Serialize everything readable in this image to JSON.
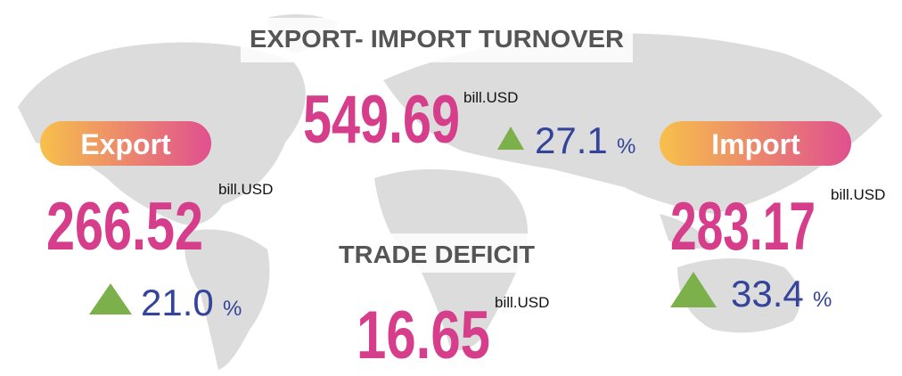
{
  "turnover": {
    "title": "EXPORT- IMPORT TURNOVER",
    "value": "549.69",
    "unit": "bill.USD",
    "change": "27.1",
    "change_unit": "%"
  },
  "export": {
    "label": "Export",
    "value": "266.52",
    "unit": "bill.USD",
    "change": "21.0",
    "change_unit": "%"
  },
  "import": {
    "label": "Import",
    "value": "283.17",
    "unit": "bill.USD",
    "change": "33.4",
    "change_unit": "%"
  },
  "deficit": {
    "title": "TRADE DEFICIT",
    "value": "16.65",
    "unit": "bill.USD"
  }
}
